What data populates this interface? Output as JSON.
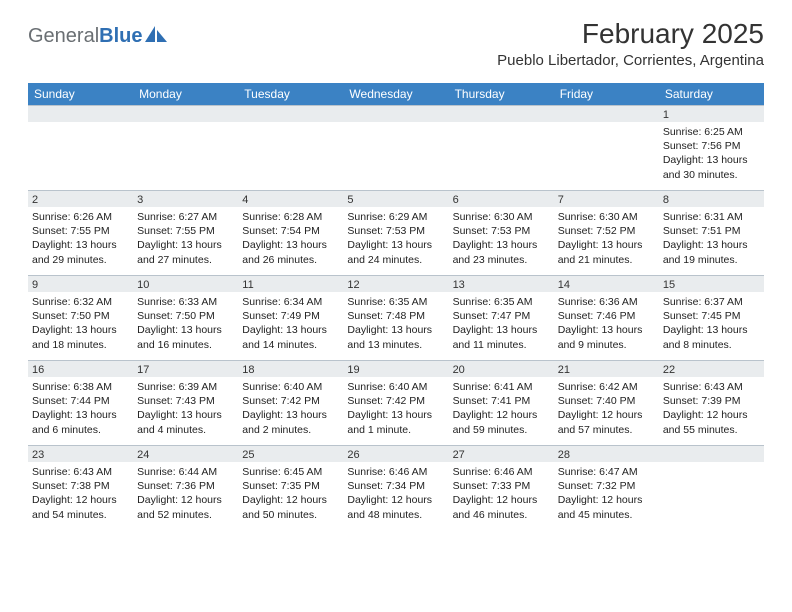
{
  "logo": {
    "general": "General",
    "blue": "Blue"
  },
  "title": "February 2025",
  "location": "Pueblo Libertador, Corrientes, Argentina",
  "weekday_bar_color": "#3b82c4",
  "weekday_text_color": "#ffffff",
  "daybar_bg": "#e9ecee",
  "border_color": "#b9c3cc",
  "weekdays": [
    "Sunday",
    "Monday",
    "Tuesday",
    "Wednesday",
    "Thursday",
    "Friday",
    "Saturday"
  ],
  "weeks": [
    [
      {
        "n": "",
        "sunrise": "",
        "sunset": "",
        "daylight": ""
      },
      {
        "n": "",
        "sunrise": "",
        "sunset": "",
        "daylight": ""
      },
      {
        "n": "",
        "sunrise": "",
        "sunset": "",
        "daylight": ""
      },
      {
        "n": "",
        "sunrise": "",
        "sunset": "",
        "daylight": ""
      },
      {
        "n": "",
        "sunrise": "",
        "sunset": "",
        "daylight": ""
      },
      {
        "n": "",
        "sunrise": "",
        "sunset": "",
        "daylight": ""
      },
      {
        "n": "1",
        "sunrise": "Sunrise: 6:25 AM",
        "sunset": "Sunset: 7:56 PM",
        "daylight": "Daylight: 13 hours and 30 minutes."
      }
    ],
    [
      {
        "n": "2",
        "sunrise": "Sunrise: 6:26 AM",
        "sunset": "Sunset: 7:55 PM",
        "daylight": "Daylight: 13 hours and 29 minutes."
      },
      {
        "n": "3",
        "sunrise": "Sunrise: 6:27 AM",
        "sunset": "Sunset: 7:55 PM",
        "daylight": "Daylight: 13 hours and 27 minutes."
      },
      {
        "n": "4",
        "sunrise": "Sunrise: 6:28 AM",
        "sunset": "Sunset: 7:54 PM",
        "daylight": "Daylight: 13 hours and 26 minutes."
      },
      {
        "n": "5",
        "sunrise": "Sunrise: 6:29 AM",
        "sunset": "Sunset: 7:53 PM",
        "daylight": "Daylight: 13 hours and 24 minutes."
      },
      {
        "n": "6",
        "sunrise": "Sunrise: 6:30 AM",
        "sunset": "Sunset: 7:53 PM",
        "daylight": "Daylight: 13 hours and 23 minutes."
      },
      {
        "n": "7",
        "sunrise": "Sunrise: 6:30 AM",
        "sunset": "Sunset: 7:52 PM",
        "daylight": "Daylight: 13 hours and 21 minutes."
      },
      {
        "n": "8",
        "sunrise": "Sunrise: 6:31 AM",
        "sunset": "Sunset: 7:51 PM",
        "daylight": "Daylight: 13 hours and 19 minutes."
      }
    ],
    [
      {
        "n": "9",
        "sunrise": "Sunrise: 6:32 AM",
        "sunset": "Sunset: 7:50 PM",
        "daylight": "Daylight: 13 hours and 18 minutes."
      },
      {
        "n": "10",
        "sunrise": "Sunrise: 6:33 AM",
        "sunset": "Sunset: 7:50 PM",
        "daylight": "Daylight: 13 hours and 16 minutes."
      },
      {
        "n": "11",
        "sunrise": "Sunrise: 6:34 AM",
        "sunset": "Sunset: 7:49 PM",
        "daylight": "Daylight: 13 hours and 14 minutes."
      },
      {
        "n": "12",
        "sunrise": "Sunrise: 6:35 AM",
        "sunset": "Sunset: 7:48 PM",
        "daylight": "Daylight: 13 hours and 13 minutes."
      },
      {
        "n": "13",
        "sunrise": "Sunrise: 6:35 AM",
        "sunset": "Sunset: 7:47 PM",
        "daylight": "Daylight: 13 hours and 11 minutes."
      },
      {
        "n": "14",
        "sunrise": "Sunrise: 6:36 AM",
        "sunset": "Sunset: 7:46 PM",
        "daylight": "Daylight: 13 hours and 9 minutes."
      },
      {
        "n": "15",
        "sunrise": "Sunrise: 6:37 AM",
        "sunset": "Sunset: 7:45 PM",
        "daylight": "Daylight: 13 hours and 8 minutes."
      }
    ],
    [
      {
        "n": "16",
        "sunrise": "Sunrise: 6:38 AM",
        "sunset": "Sunset: 7:44 PM",
        "daylight": "Daylight: 13 hours and 6 minutes."
      },
      {
        "n": "17",
        "sunrise": "Sunrise: 6:39 AM",
        "sunset": "Sunset: 7:43 PM",
        "daylight": "Daylight: 13 hours and 4 minutes."
      },
      {
        "n": "18",
        "sunrise": "Sunrise: 6:40 AM",
        "sunset": "Sunset: 7:42 PM",
        "daylight": "Daylight: 13 hours and 2 minutes."
      },
      {
        "n": "19",
        "sunrise": "Sunrise: 6:40 AM",
        "sunset": "Sunset: 7:42 PM",
        "daylight": "Daylight: 13 hours and 1 minute."
      },
      {
        "n": "20",
        "sunrise": "Sunrise: 6:41 AM",
        "sunset": "Sunset: 7:41 PM",
        "daylight": "Daylight: 12 hours and 59 minutes."
      },
      {
        "n": "21",
        "sunrise": "Sunrise: 6:42 AM",
        "sunset": "Sunset: 7:40 PM",
        "daylight": "Daylight: 12 hours and 57 minutes."
      },
      {
        "n": "22",
        "sunrise": "Sunrise: 6:43 AM",
        "sunset": "Sunset: 7:39 PM",
        "daylight": "Daylight: 12 hours and 55 minutes."
      }
    ],
    [
      {
        "n": "23",
        "sunrise": "Sunrise: 6:43 AM",
        "sunset": "Sunset: 7:38 PM",
        "daylight": "Daylight: 12 hours and 54 minutes."
      },
      {
        "n": "24",
        "sunrise": "Sunrise: 6:44 AM",
        "sunset": "Sunset: 7:36 PM",
        "daylight": "Daylight: 12 hours and 52 minutes."
      },
      {
        "n": "25",
        "sunrise": "Sunrise: 6:45 AM",
        "sunset": "Sunset: 7:35 PM",
        "daylight": "Daylight: 12 hours and 50 minutes."
      },
      {
        "n": "26",
        "sunrise": "Sunrise: 6:46 AM",
        "sunset": "Sunset: 7:34 PM",
        "daylight": "Daylight: 12 hours and 48 minutes."
      },
      {
        "n": "27",
        "sunrise": "Sunrise: 6:46 AM",
        "sunset": "Sunset: 7:33 PM",
        "daylight": "Daylight: 12 hours and 46 minutes."
      },
      {
        "n": "28",
        "sunrise": "Sunrise: 6:47 AM",
        "sunset": "Sunset: 7:32 PM",
        "daylight": "Daylight: 12 hours and 45 minutes."
      },
      {
        "n": "",
        "sunrise": "",
        "sunset": "",
        "daylight": ""
      }
    ]
  ]
}
